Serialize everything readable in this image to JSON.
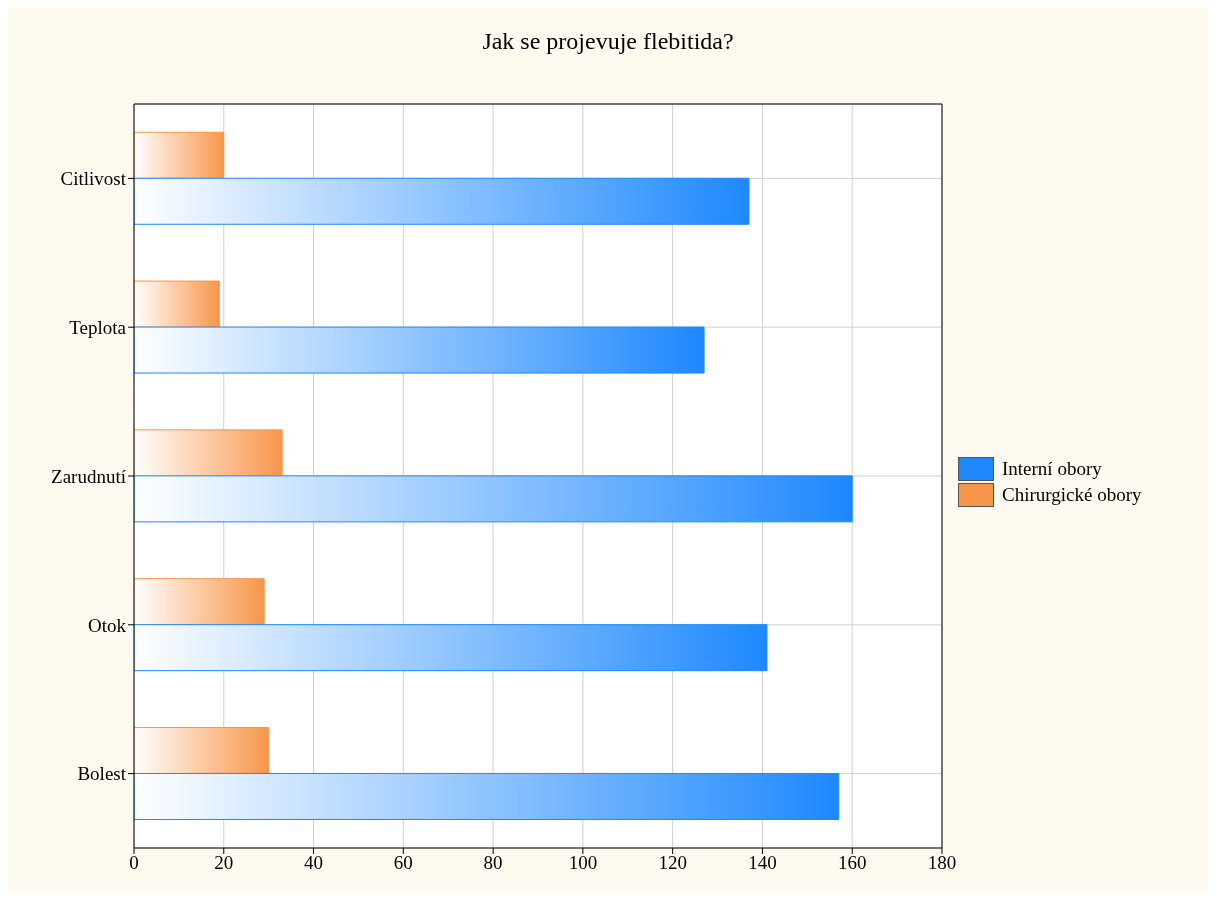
{
  "chart_data": {
    "type": "bar",
    "orientation": "horizontal",
    "title": "Jak se projevuje flebitida?",
    "categories": [
      "Citlivost",
      "Teplota",
      "Zarudnutí",
      "Otok",
      "Bolest"
    ],
    "series": [
      {
        "name": "Interní obory",
        "color": "#1e88ff",
        "values": [
          137,
          127,
          160,
          141,
          157
        ]
      },
      {
        "name": "Chirurgické obory",
        "color": "#f7964a",
        "values": [
          20,
          19,
          33,
          29,
          30
        ]
      }
    ],
    "xlim": [
      0,
      180
    ],
    "xticks": [
      0,
      20,
      40,
      60,
      80,
      100,
      120,
      140,
      160,
      180
    ],
    "grid": true,
    "legend": "right"
  }
}
